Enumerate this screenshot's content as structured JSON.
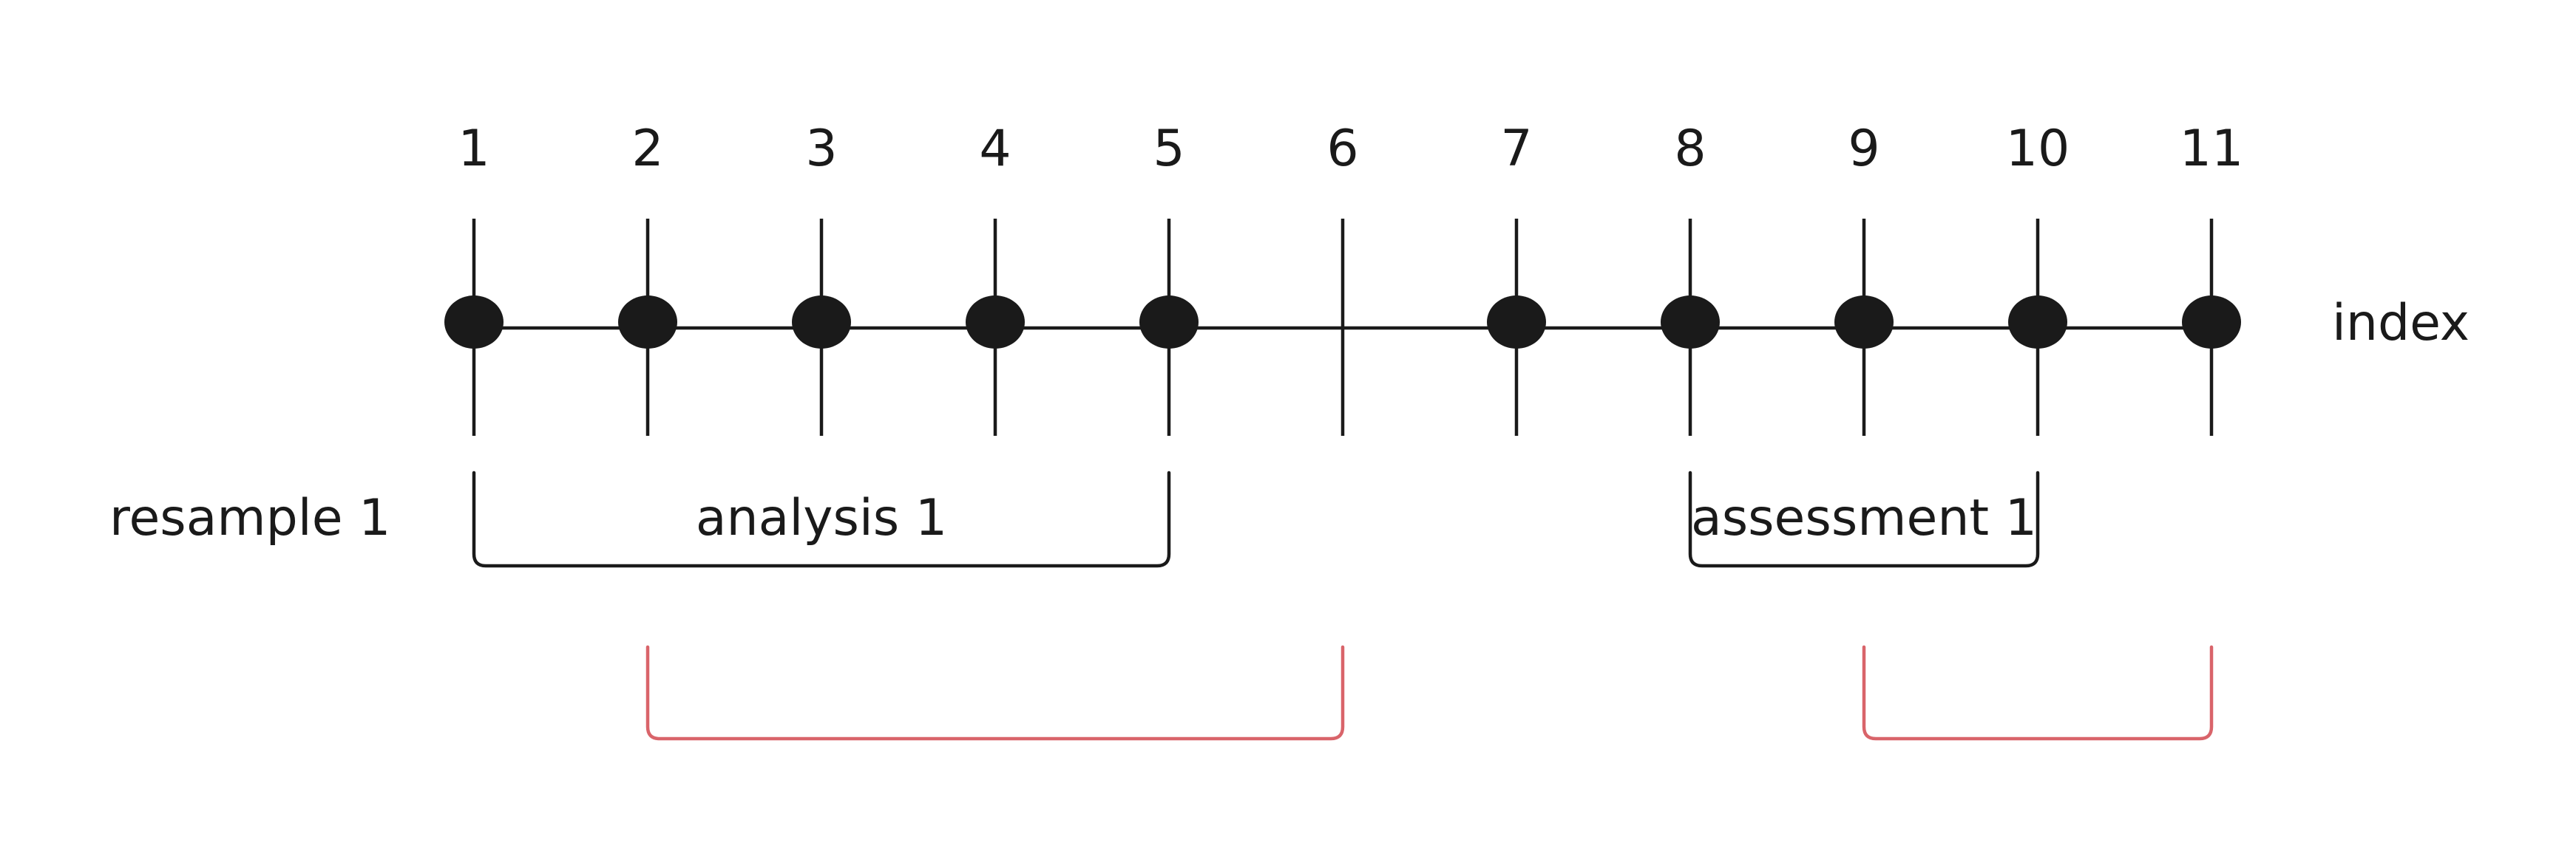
{
  "index_label": "index",
  "ticks": [
    {
      "label": "1",
      "point": true
    },
    {
      "label": "2",
      "point": true
    },
    {
      "label": "3",
      "point": true
    },
    {
      "label": "4",
      "point": true
    },
    {
      "label": "5",
      "point": true
    },
    {
      "label": "6",
      "point": false
    },
    {
      "label": "7",
      "point": true
    },
    {
      "label": "8",
      "point": true
    },
    {
      "label": "9",
      "point": true
    },
    {
      "label": "10",
      "point": true
    },
    {
      "label": "11",
      "point": true
    }
  ],
  "resample_label": "resample 1",
  "brackets": [
    {
      "name": "analysis-1",
      "label": "analysis 1",
      "from": 1,
      "to": 5,
      "row": 1,
      "color": "#1a1a1a"
    },
    {
      "name": "assessment-1",
      "label": "assessment 1",
      "from": 8,
      "to": 10,
      "row": 1,
      "color": "#1a1a1a"
    },
    {
      "name": "analysis-2",
      "label": "",
      "from": 2,
      "to": 6,
      "row": 2,
      "color": "#d9646a"
    },
    {
      "name": "assessment-2",
      "label": "",
      "from": 9,
      "to": 11,
      "row": 2,
      "color": "#d9646a"
    }
  ],
  "colors": {
    "ink": "#1a1a1a",
    "accent": "#d9646a",
    "background": "#ffffff"
  }
}
